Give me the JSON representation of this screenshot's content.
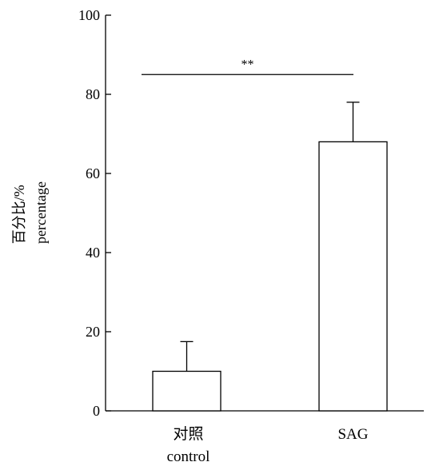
{
  "chart_data": {
    "type": "bar",
    "categories": [
      "对照",
      "SAG"
    ],
    "category_sublabels": [
      "control",
      ""
    ],
    "values": [
      10,
      68
    ],
    "error_bars": [
      7.5,
      10
    ],
    "ylabel_lines": [
      "百分比/%",
      "percentage"
    ],
    "ylim": [
      0,
      100
    ],
    "yticks": [
      0,
      20,
      40,
      60,
      80,
      100
    ],
    "grid": false,
    "legend": "none",
    "significance": {
      "between": [
        0,
        1
      ],
      "label": "**",
      "y": 85
    },
    "colors": {
      "bar_fill": "#ffffff",
      "stroke": "#000000"
    }
  }
}
